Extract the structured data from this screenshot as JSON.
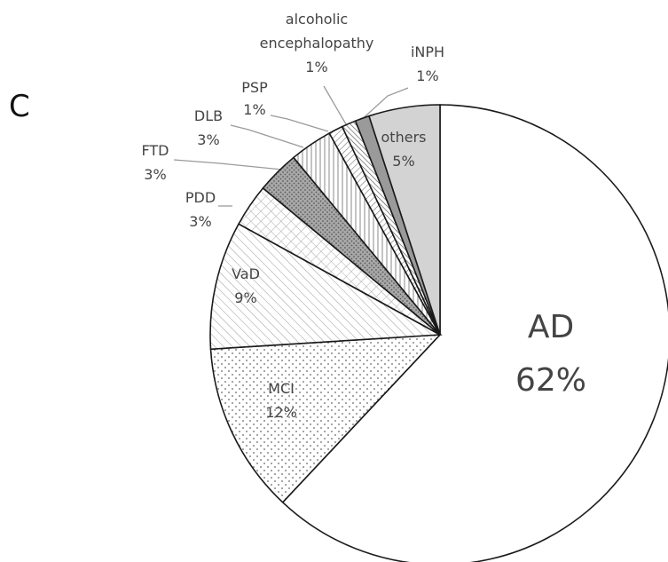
{
  "panel_label": "C",
  "chart_data": {
    "type": "pie",
    "slices": [
      {
        "label": "AD",
        "value": 62,
        "value_label": "62%",
        "fill": "white"
      },
      {
        "label": "MCI",
        "value": 12,
        "value_label": "12%",
        "fill": "dots"
      },
      {
        "label": "VaD",
        "value": 9,
        "value_label": "9%",
        "fill": "diagonal-up"
      },
      {
        "label": "PDD",
        "value": 3,
        "value_label": "3%",
        "fill": "crosshatch"
      },
      {
        "label": "FTD",
        "value": 3,
        "value_label": "3%",
        "fill": "dark-dots"
      },
      {
        "label": "DLB",
        "value": 3,
        "value_label": "3%",
        "fill": "vertical"
      },
      {
        "label": "PSP",
        "value": 1,
        "value_label": "1%",
        "fill": "diagonal-down"
      },
      {
        "label": "alcoholic encephalopathy",
        "value": 1,
        "value_label": "1%",
        "fill": "diagonal-dense"
      },
      {
        "label": "iNPH",
        "value": 1,
        "value_label": "1%",
        "fill": "solid-gray"
      },
      {
        "label": "others",
        "value": 5,
        "value_label": "5%",
        "fill": "light-gray"
      }
    ],
    "start_angle_deg": 0,
    "direction": "clockwise",
    "colors": {
      "outline": "#1a1a1a",
      "others": "#d3d3d3",
      "iNPH": "#9a9a9a",
      "text": "#444444"
    }
  }
}
